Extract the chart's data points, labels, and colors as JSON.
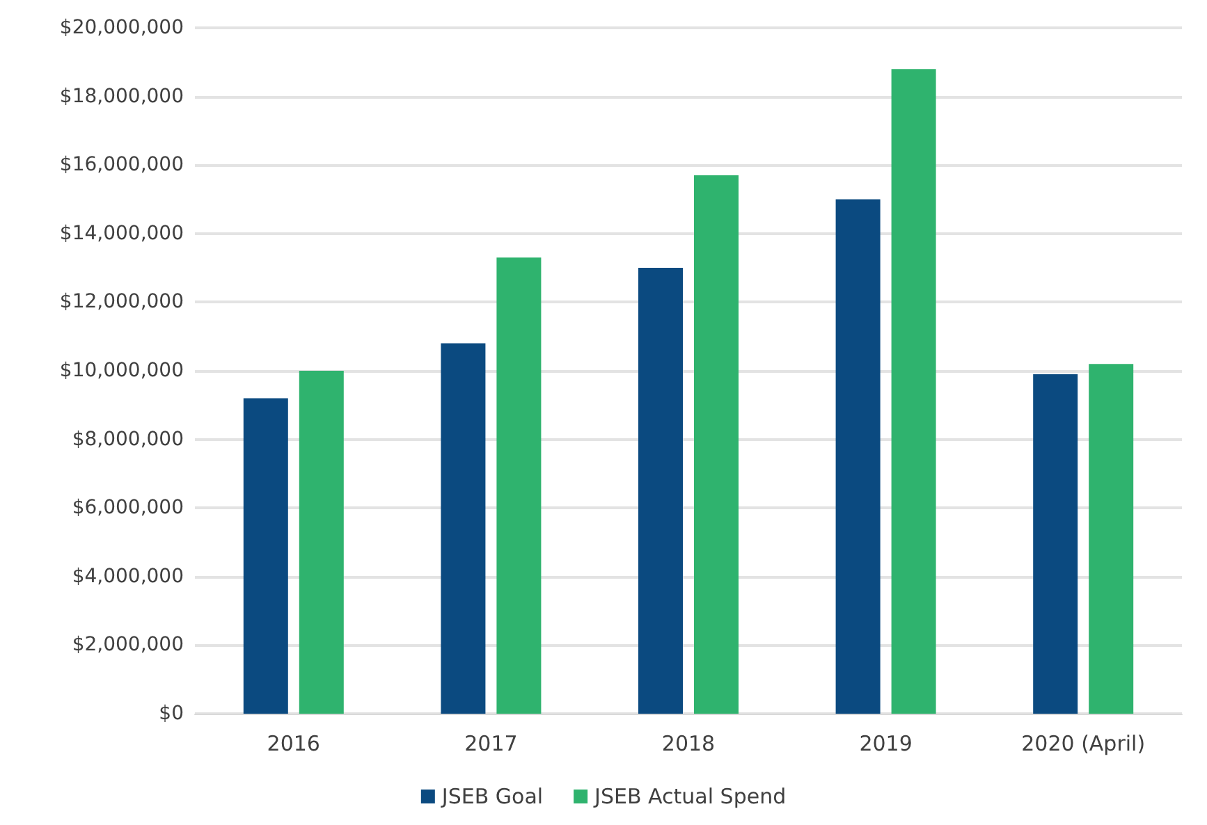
{
  "chart_data": {
    "type": "bar",
    "categories": [
      "2016",
      "2017",
      "2018",
      "2019",
      "2020 (April)"
    ],
    "series": [
      {
        "name": "JSEB Goal",
        "color": "#0b4a80",
        "values": [
          9200000,
          10800000,
          13000000,
          15000000,
          9900000
        ]
      },
      {
        "name": "JSEB Actual Spend",
        "color": "#2fb36e",
        "values": [
          10000000,
          13300000,
          15700000,
          18800000,
          10200000
        ]
      }
    ],
    "ylim": [
      0,
      20000000
    ],
    "yticks": [
      {
        "value": 0,
        "label": "$0"
      },
      {
        "value": 2000000,
        "label": "$2,000,000"
      },
      {
        "value": 4000000,
        "label": "$4,000,000"
      },
      {
        "value": 6000000,
        "label": "$6,000,000"
      },
      {
        "value": 8000000,
        "label": "$8,000,000"
      },
      {
        "value": 10000000,
        "label": "$10,000,000"
      },
      {
        "value": 12000000,
        "label": "$12,000,000"
      },
      {
        "value": 14000000,
        "label": "$14,000,000"
      },
      {
        "value": 16000000,
        "label": "$16,000,000"
      },
      {
        "value": 18000000,
        "label": "$18,000,000"
      },
      {
        "value": 20000000,
        "label": "$20,000,000"
      }
    ],
    "grid": "y",
    "legend": "bottom"
  }
}
